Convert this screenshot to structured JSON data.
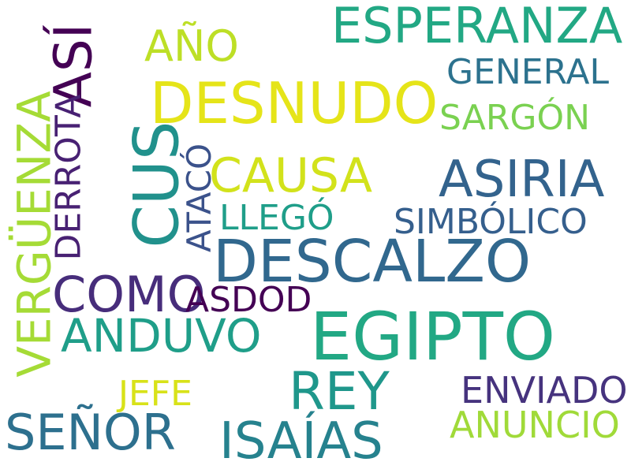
{
  "words": [
    {
      "id": "esperanza",
      "text": "ESPERANZA",
      "color": "#22a884"
    },
    {
      "id": "ano",
      "text": "AÑO",
      "color": "#bddf26"
    },
    {
      "id": "asi",
      "text": "ASÍ",
      "color": "#440154"
    },
    {
      "id": "desnudo",
      "text": "DESNUDO",
      "color": "#e5e419"
    },
    {
      "id": "general",
      "text": "GENERAL",
      "color": "#2c728e"
    },
    {
      "id": "sargon",
      "text": "SARGÓN",
      "color": "#7ad151"
    },
    {
      "id": "verguenza",
      "text": "VERGÜENZA",
      "color": "#a5db36"
    },
    {
      "id": "derrota",
      "text": "DERROTA",
      "color": "#482173"
    },
    {
      "id": "cus",
      "text": "CUS",
      "color": "#21918c"
    },
    {
      "id": "causa",
      "text": "CAUSA",
      "color": "#d2e21b"
    },
    {
      "id": "ataco",
      "text": "ATACÓ",
      "color": "#3b528b"
    },
    {
      "id": "asiria",
      "text": "ASIRIA",
      "color": "#33638d"
    },
    {
      "id": "llego",
      "text": "LLEGÓ",
      "color": "#1f9e89"
    },
    {
      "id": "simbolico",
      "text": "SIMBÓLICO",
      "color": "#355f8d"
    },
    {
      "id": "descalzo",
      "text": "DESCALZO",
      "color": "#31688e"
    },
    {
      "id": "como",
      "text": "COMO",
      "color": "#472d7b"
    },
    {
      "id": "asdod",
      "text": "ASDOD",
      "color": "#440154"
    },
    {
      "id": "egipto",
      "text": "EGIPTO",
      "color": "#22a884"
    },
    {
      "id": "anduvo",
      "text": "ANDUVO",
      "color": "#1f9e89"
    },
    {
      "id": "rey",
      "text": "REY",
      "color": "#1f978b"
    },
    {
      "id": "enviado",
      "text": "ENVIADO",
      "color": "#46337e"
    },
    {
      "id": "jefe",
      "text": "JEFE",
      "color": "#d8e219"
    },
    {
      "id": "anuncio",
      "text": "ANUNCIO",
      "color": "#a0da39"
    },
    {
      "id": "senor",
      "text": "SEÑOR",
      "color": "#2d708e"
    },
    {
      "id": "isaias",
      "text": "ISAÍAS",
      "color": "#26828e"
    }
  ]
}
